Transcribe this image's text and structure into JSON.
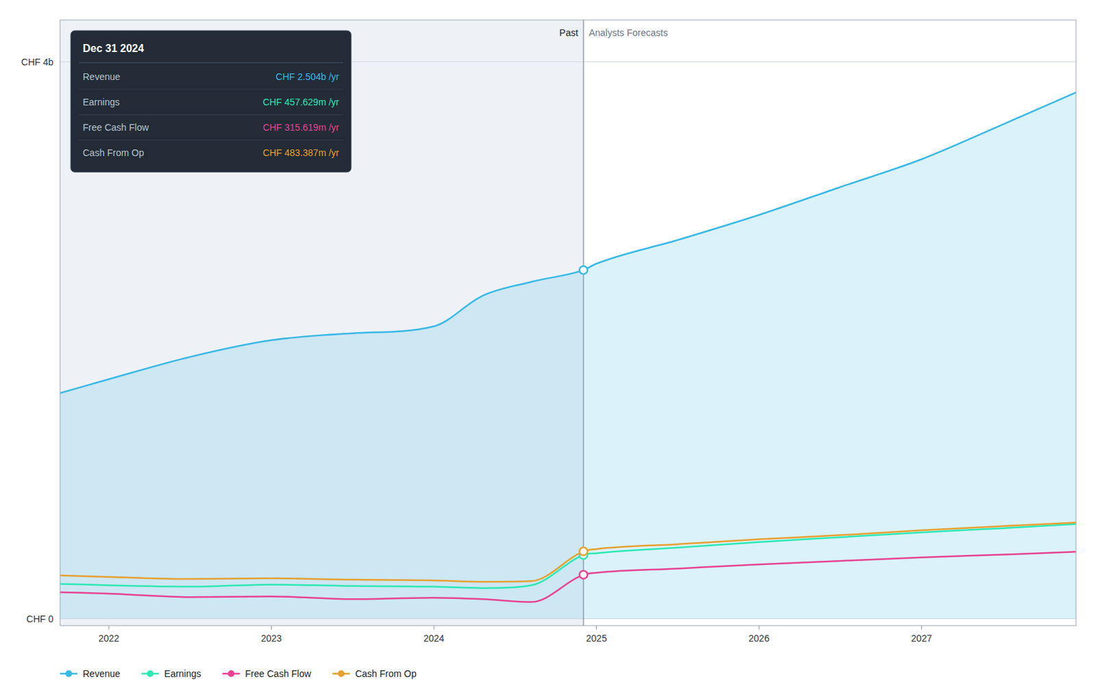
{
  "chart_data": {
    "type": "line",
    "x": [
      2021.7,
      2022,
      2022.5,
      2023,
      2023.5,
      2024,
      2024.3,
      2024.6,
      2024.92,
      2025,
      2025.5,
      2026,
      2026.5,
      2027,
      2027.5,
      2027.95
    ],
    "xlim": [
      2021.7,
      2027.95
    ],
    "xticks": [
      2022,
      2023,
      2024,
      2025,
      2026,
      2027
    ],
    "ylim": [
      -50000000,
      4300000000
    ],
    "yticks": [
      {
        "value": 0,
        "label": "CHF 0"
      },
      {
        "value": 4000000000,
        "label": "CHF 4b"
      }
    ],
    "grid": true,
    "legend": "bottom",
    "divider_x": 2024.92,
    "annotations": [
      "Past",
      "Analysts Forecasts"
    ],
    "series": [
      {
        "name": "Revenue",
        "color": "#3ab8e6",
        "type": "area",
        "values": [
          1620000000,
          1720000000,
          1880000000,
          2000000000,
          2050000000,
          2100000000,
          2320000000,
          2420000000,
          2504000000,
          2550000000,
          2720000000,
          2900000000,
          3100000000,
          3300000000,
          3550000000,
          3780000000
        ]
      },
      {
        "name": "Earnings",
        "color": "#2ee8b5",
        "type": "line",
        "values": [
          250000000,
          240000000,
          230000000,
          245000000,
          235000000,
          230000000,
          220000000,
          240000000,
          457600000,
          470000000,
          510000000,
          550000000,
          585000000,
          620000000,
          650000000,
          680000000
        ]
      },
      {
        "name": "Free Cash Flow",
        "color": "#e84393",
        "type": "line",
        "values": [
          190000000,
          180000000,
          155000000,
          160000000,
          140000000,
          150000000,
          140000000,
          120000000,
          315600000,
          330000000,
          360000000,
          390000000,
          415000000,
          440000000,
          460000000,
          480000000
        ]
      },
      {
        "name": "Cash From Op",
        "color": "#e8a030",
        "type": "line",
        "values": [
          310000000,
          300000000,
          285000000,
          290000000,
          280000000,
          275000000,
          265000000,
          270000000,
          483400000,
          500000000,
          535000000,
          570000000,
          600000000,
          635000000,
          665000000,
          690000000
        ]
      }
    ],
    "tooltip": {
      "title": "Dec 31 2024",
      "rows": [
        {
          "name": "Revenue",
          "text": "CHF 2.504b /yr",
          "color": "#3ab8e6"
        },
        {
          "name": "Earnings",
          "text": "CHF 457.629m /yr",
          "color": "#2ee8b5"
        },
        {
          "name": "Free Cash Flow",
          "text": "CHF 315.619m /yr",
          "color": "#e84393"
        },
        {
          "name": "Cash From Op",
          "text": "CHF 483.387m /yr",
          "color": "#e8a030"
        }
      ]
    }
  }
}
